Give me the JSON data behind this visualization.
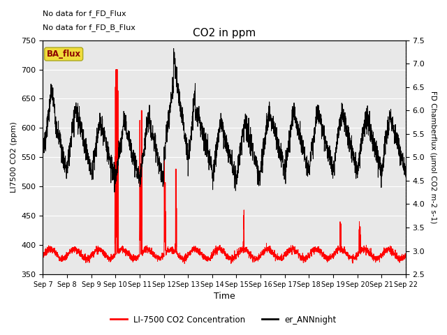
{
  "title": "CO2 in ppm",
  "xlabel": "Time",
  "ylabel_left": "LI7500 CO2 (ppm)",
  "ylabel_right": "FD Chamberflux (μmol CO2 m-2 s-1)",
  "ylim_left": [
    350,
    750
  ],
  "ylim_right": [
    2.5,
    7.5
  ],
  "yticks_left": [
    350,
    400,
    450,
    500,
    550,
    600,
    650,
    700,
    750
  ],
  "yticks_right": [
    2.5,
    3.0,
    3.5,
    4.0,
    4.5,
    5.0,
    5.5,
    6.0,
    6.5,
    7.0,
    7.5
  ],
  "xtick_labels": [
    "Sep 7",
    "Sep 8",
    "Sep 9",
    "Sep 10",
    "Sep 11",
    "Sep 12",
    "Sep 13",
    "Sep 14",
    "Sep 15",
    "Sep 16",
    "Sep 17",
    "Sep 18",
    "Sep 19",
    "Sep 20",
    "Sep 21",
    "Sep 22"
  ],
  "annotation_lines": [
    "No data for f_FD_Flux",
    "No data for f_FD_B_Flux"
  ],
  "legend_labels": [
    "LI-7500 CO2 Concentration",
    "er_ANNnight"
  ],
  "legend_colors": [
    "red",
    "black"
  ],
  "line_colors": [
    "red",
    "black"
  ],
  "ba_flux_label": "BA_flux",
  "ba_flux_bg": "#f0dc3c",
  "ba_flux_text": "#8b0000",
  "background_color": "#e8e8e8",
  "n_days": 15,
  "n_points": 3000,
  "figsize": [
    6.4,
    4.8
  ],
  "dpi": 100
}
